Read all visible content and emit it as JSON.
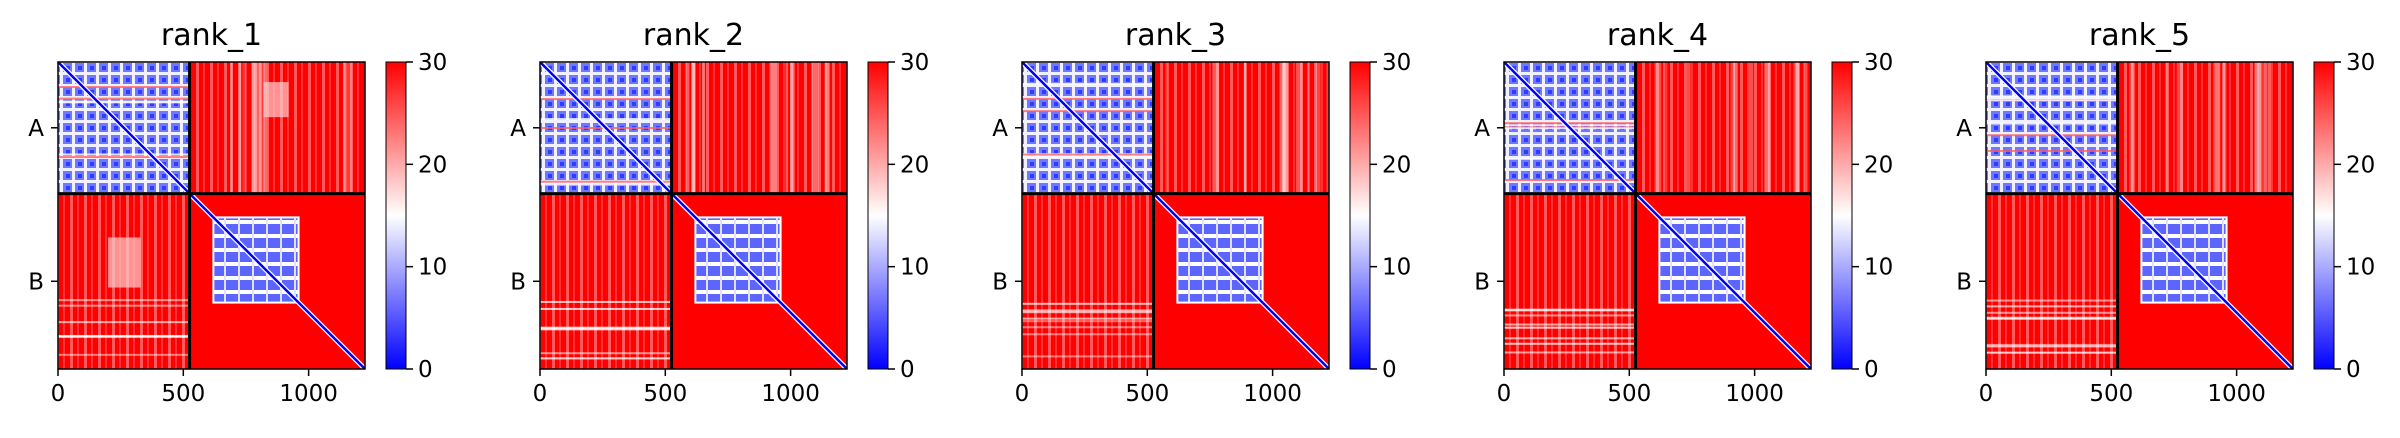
{
  "colors": {
    "low": "#0000ff",
    "mid": "#ffffff",
    "high": "#ff0000",
    "axis": "#000000",
    "separator": "#000000"
  },
  "chart_data": [
    {
      "type": "heatmap",
      "title": "rank_1",
      "x_ticks": [
        0,
        500,
        1000
      ],
      "xlim": [
        0,
        1225
      ],
      "y_ticks": [
        "A",
        "B"
      ],
      "chains": [
        {
          "name": "A",
          "start": 0,
          "end": 525
        },
        {
          "name": "B",
          "start": 525,
          "end": 1225
        }
      ],
      "colorbar": {
        "vmin": 0,
        "vmax": 30,
        "ticks": [
          0,
          10,
          20,
          30
        ]
      }
    },
    {
      "type": "heatmap",
      "title": "rank_2",
      "x_ticks": [
        0,
        500,
        1000
      ],
      "xlim": [
        0,
        1225
      ],
      "y_ticks": [
        "A",
        "B"
      ],
      "chains": [
        {
          "name": "A",
          "start": 0,
          "end": 525
        },
        {
          "name": "B",
          "start": 525,
          "end": 1225
        }
      ],
      "colorbar": {
        "vmin": 0,
        "vmax": 30,
        "ticks": [
          0,
          10,
          20,
          30
        ]
      }
    },
    {
      "type": "heatmap",
      "title": "rank_3",
      "x_ticks": [
        0,
        500,
        1000
      ],
      "xlim": [
        0,
        1225
      ],
      "y_ticks": [
        "A",
        "B"
      ],
      "chains": [
        {
          "name": "A",
          "start": 0,
          "end": 525
        },
        {
          "name": "B",
          "start": 525,
          "end": 1225
        }
      ],
      "colorbar": {
        "vmin": 0,
        "vmax": 30,
        "ticks": [
          0,
          10,
          20,
          30
        ]
      }
    },
    {
      "type": "heatmap",
      "title": "rank_4",
      "x_ticks": [
        0,
        500,
        1000
      ],
      "xlim": [
        0,
        1225
      ],
      "y_ticks": [
        "A",
        "B"
      ],
      "chains": [
        {
          "name": "A",
          "start": 0,
          "end": 525
        },
        {
          "name": "B",
          "start": 525,
          "end": 1225
        }
      ],
      "colorbar": {
        "vmin": 0,
        "vmax": 30,
        "ticks": [
          0,
          10,
          20,
          30
        ]
      }
    },
    {
      "type": "heatmap",
      "title": "rank_5",
      "x_ticks": [
        0,
        500,
        1000
      ],
      "xlim": [
        0,
        1225
      ],
      "y_ticks": [
        "A",
        "B"
      ],
      "chains": [
        {
          "name": "A",
          "start": 0,
          "end": 525
        },
        {
          "name": "B",
          "start": 525,
          "end": 1225
        }
      ],
      "colorbar": {
        "vmin": 0,
        "vmax": 30,
        "ticks": [
          0,
          10,
          20,
          30
        ]
      }
    }
  ]
}
